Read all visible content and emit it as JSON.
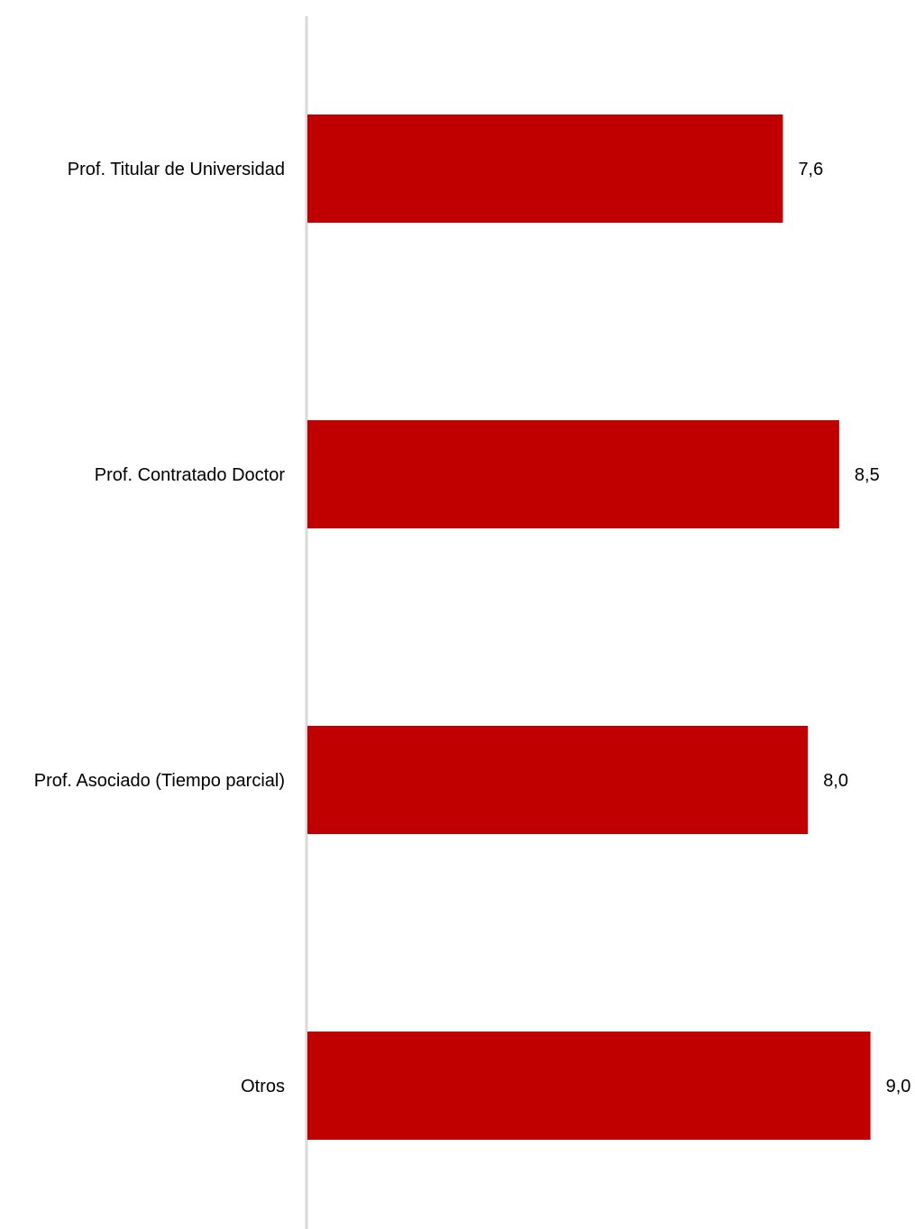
{
  "chart_data": {
    "type": "bar",
    "orientation": "horizontal",
    "categories": [
      "Prof. Titular de Universidad",
      "Prof. Contratado Doctor",
      "Prof. Asociado (Tiempo parcial)",
      "Otros"
    ],
    "values": [
      7.6,
      8.5,
      8.0,
      9.0
    ],
    "value_labels": [
      "7,6",
      "8,5",
      "8,0",
      "9,0"
    ],
    "title": "",
    "xlabel": "",
    "ylabel": "",
    "xlim": [
      0,
      9.0
    ],
    "grid": false,
    "legend": "none",
    "colors": {
      "bar": "#c00000",
      "axis": "#d9d9d9"
    }
  }
}
